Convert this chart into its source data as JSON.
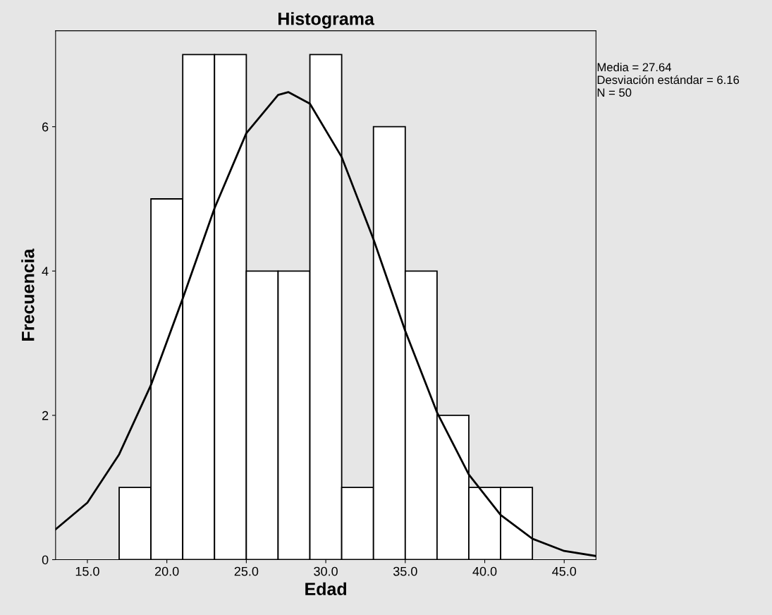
{
  "chart_data": {
    "type": "histogram",
    "title": "Histograma",
    "xlabel": "Edad",
    "ylabel": "Frecuencia",
    "bins": [
      17,
      19,
      21,
      23,
      25,
      27,
      29,
      31,
      33,
      35,
      37,
      39,
      41,
      43
    ],
    "series": [
      {
        "color": "#ffffff",
        "values": [
          1,
          5,
          7,
          7,
          4,
          4,
          7,
          1,
          6,
          4,
          2,
          1,
          1
        ]
      },
      {
        "type": "line",
        "color": "#000000",
        "x": [
          13,
          15,
          17,
          19,
          21,
          23,
          25,
          27,
          27.64,
          29,
          31,
          33,
          35,
          37,
          39,
          41,
          43,
          45,
          47
        ],
        "values": [
          0.42,
          0.79,
          1.46,
          2.42,
          3.62,
          4.87,
          5.91,
          6.44,
          6.48,
          6.32,
          5.58,
          4.44,
          3.17,
          2.04,
          1.18,
          0.62,
          0.29,
          0.12,
          0.05
        ]
      }
    ],
    "xlim": [
      13.0,
      47.0
    ],
    "ylim": [
      0,
      7.33
    ],
    "xticks": [
      {
        "value": 15,
        "label": "15.0"
      },
      {
        "value": 20,
        "label": "20.0"
      },
      {
        "value": 25,
        "label": "25.0"
      },
      {
        "value": 30,
        "label": "30.0"
      },
      {
        "value": 35,
        "label": "35.0"
      },
      {
        "value": 40,
        "label": "40.0"
      },
      {
        "value": 45,
        "label": "45.0"
      }
    ],
    "yticks": [
      0,
      2,
      4,
      6
    ],
    "annotations": [
      "Media = 27.64\nDesviación estándar = 6.16\nN = 50"
    ],
    "grid": false,
    "legend": false
  }
}
